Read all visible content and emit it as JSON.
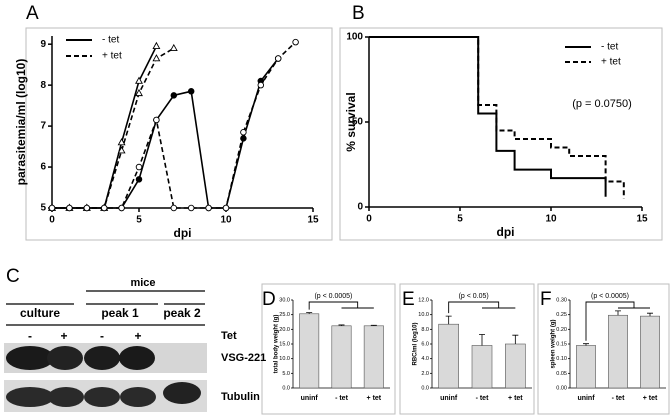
{
  "panel_labels": [
    "A",
    "B",
    "C",
    "D",
    "E",
    "F"
  ],
  "chart_data": [
    {
      "type": "line",
      "xlabel": "dpi",
      "ylabel": "parasitemia/ml (log10)",
      "color": "#000000",
      "x": [
        0,
        1,
        2,
        3,
        4,
        5,
        6,
        7,
        8,
        9,
        10,
        11,
        12,
        13,
        14
      ],
      "xlim": [
        0,
        15
      ],
      "xticks": [
        0,
        5,
        10,
        15
      ],
      "ylim": [
        5,
        9.2
      ],
      "yticks": [
        5,
        6,
        7,
        8,
        9
      ],
      "series": [
        {
          "name": "- tet",
          "line_style": "solid",
          "marker": "triangle",
          "filled": false,
          "values": [
            5,
            5,
            5,
            5,
            6.6,
            8.1,
            8.95,
            null,
            null,
            null,
            null,
            null,
            null,
            null,
            null
          ]
        },
        {
          "name": "+ tet",
          "line_style": "dashed",
          "marker": "triangle",
          "filled": false,
          "values": [
            5,
            5,
            5,
            5,
            6.4,
            7.8,
            8.65,
            8.9,
            null,
            null,
            null,
            null,
            null,
            null,
            null
          ]
        },
        {
          "line_style": "solid",
          "marker": "circle",
          "filled": true,
          "values": [
            5,
            5,
            5,
            5,
            5,
            5.7,
            7.15,
            7.75,
            7.85,
            5,
            5,
            6.7,
            8.1,
            8.65,
            null
          ]
        },
        {
          "line_style": "dashed",
          "marker": "circle",
          "filled": false,
          "values": [
            5,
            5,
            5,
            5,
            5,
            6.0,
            7.15,
            5,
            5,
            5,
            5,
            6.85,
            8.0,
            8.65,
            9.05
          ]
        }
      ]
    },
    {
      "type": "step",
      "xlabel": "dpi",
      "ylabel": "% survival",
      "annotation": "(p = 0.0750)",
      "color": "#000000",
      "xlim": [
        0,
        15
      ],
      "xticks": [
        0,
        5,
        10,
        15
      ],
      "ylim": [
        0,
        100
      ],
      "yticks": [
        0,
        50,
        100
      ],
      "series": [
        {
          "name": "- tet",
          "line_style": "solid",
          "x": [
            0,
            6,
            7,
            8,
            10,
            13
          ],
          "values": [
            100,
            55,
            33,
            22,
            17,
            6
          ]
        },
        {
          "name": "+ tet",
          "line_style": "dashed",
          "x": [
            0,
            6,
            7,
            8,
            10,
            11,
            13,
            14
          ],
          "values": [
            100,
            60,
            45,
            40,
            35,
            30,
            15,
            5
          ]
        }
      ]
    },
    {
      "type": "bar",
      "ylabel": "total body weight (g)",
      "annotation": "(p < 0.0005)",
      "color": "#d9d9d9",
      "categories": [
        "uninf",
        "- tet",
        "+ tet"
      ],
      "values": [
        25.3,
        21.2,
        21.2
      ],
      "errors": [
        0.4,
        0.3,
        0.2
      ],
      "ylim": [
        0,
        30
      ],
      "yticks": [
        {
          "value": 0,
          "label": "0.0"
        },
        {
          "value": 5,
          "label": "5.0"
        },
        {
          "value": 10,
          "label": "10.0"
        },
        {
          "value": 15,
          "label": "15.0"
        },
        {
          "value": 20,
          "label": "20.0"
        },
        {
          "value": 25,
          "label": "25.0"
        },
        {
          "value": 30,
          "label": "30.0"
        }
      ]
    },
    {
      "type": "bar",
      "ylabel": "RBC/ml (log10)",
      "annotation": "(p < 0.05)",
      "color": "#d9d9d9",
      "categories": [
        "uninf",
        "- tet",
        "+ tet"
      ],
      "values": [
        8.7,
        5.8,
        6.0
      ],
      "errors": [
        1.1,
        1.5,
        1.2
      ],
      "ylim": [
        0,
        12
      ],
      "yticks": [
        {
          "value": 0,
          "label": "0.0"
        },
        {
          "value": 2,
          "label": "2.0"
        },
        {
          "value": 4,
          "label": "4.0"
        },
        {
          "value": 6,
          "label": "6.0"
        },
        {
          "value": 8,
          "label": "8.0"
        },
        {
          "value": 10,
          "label": "10.0"
        },
        {
          "value": 12,
          "label": "12.0"
        }
      ]
    },
    {
      "type": "bar",
      "ylabel": "spleen weight (g)",
      "annotation": "(p < 0.0005)",
      "color": "#d9d9d9",
      "categories": [
        "uninf",
        "- tet",
        "+ tet"
      ],
      "values": [
        0.145,
        0.248,
        0.245
      ],
      "errors": [
        0.006,
        0.015,
        0.01
      ],
      "ylim": [
        0,
        0.3
      ],
      "yticks": [
        {
          "value": 0,
          "label": "0.00"
        },
        {
          "value": 0.05,
          "label": "0.05"
        },
        {
          "value": 0.1,
          "label": "0.10"
        },
        {
          "value": 0.15,
          "label": "0.15"
        },
        {
          "value": 0.2,
          "label": "0.20"
        },
        {
          "value": 0.25,
          "label": "0.25"
        },
        {
          "value": 0.3,
          "label": "0.30"
        }
      ]
    }
  ],
  "blot": {
    "header": "mice",
    "groups": [
      "culture",
      "peak 1",
      "peak 2"
    ],
    "row_label": "Tet",
    "lanes": [
      "-",
      "+",
      "-",
      "+"
    ],
    "rows": [
      "VSG-221",
      "Tubulin"
    ]
  }
}
